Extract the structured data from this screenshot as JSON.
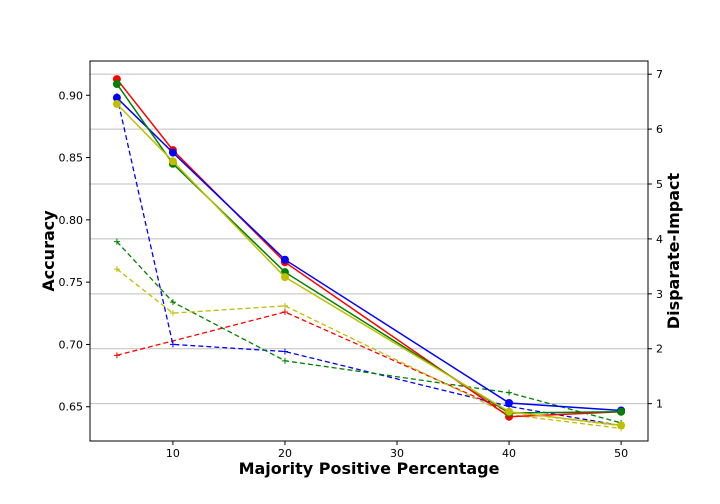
{
  "chart_data": {
    "type": "line",
    "xlabel": "Majority Positive Percentage",
    "ylabel_left": "Accuracy",
    "ylabel_right": "Disparate-Impact",
    "x": [
      5,
      10,
      20,
      40,
      50
    ],
    "xlim": [
      2.6,
      52.4
    ],
    "xticks": [
      10,
      20,
      30,
      40,
      50
    ],
    "ylim_left": [
      0.6225,
      0.9275
    ],
    "yticks_left": [
      0.65,
      0.7,
      0.75,
      0.8,
      0.85,
      0.9
    ],
    "ylim_right": [
      0.32,
      7.24
    ],
    "yticks_right": [
      1,
      2,
      3,
      4,
      5,
      6,
      7
    ],
    "grid": "horizontal lines at right-axis ticks",
    "accuracy_series": [
      {
        "color": "#ff0000",
        "values": [
          0.913,
          0.856,
          0.766,
          0.642,
          0.646
        ]
      },
      {
        "color": "#0000ff",
        "values": [
          0.898,
          0.854,
          0.768,
          0.653,
          0.647
        ]
      },
      {
        "color": "#008000",
        "values": [
          0.909,
          0.845,
          0.758,
          0.645,
          0.646
        ]
      },
      {
        "color": "#bfbf00",
        "values": [
          0.893,
          0.847,
          0.754,
          0.646,
          0.635
        ]
      }
    ],
    "disparate_impact_series": [
      {
        "color": "#ff0000",
        "values": [
          1.88,
          null,
          2.67,
          0.85,
          0.6
        ]
      },
      {
        "color": "#0000ff",
        "values": [
          6.6,
          2.08,
          1.95,
          0.95,
          0.6
        ]
      },
      {
        "color": "#008000",
        "values": [
          3.95,
          2.85,
          1.78,
          1.2,
          0.65
        ]
      },
      {
        "color": "#bfbf00",
        "values": [
          3.45,
          2.65,
          2.78,
          0.8,
          0.55
        ]
      }
    ]
  }
}
